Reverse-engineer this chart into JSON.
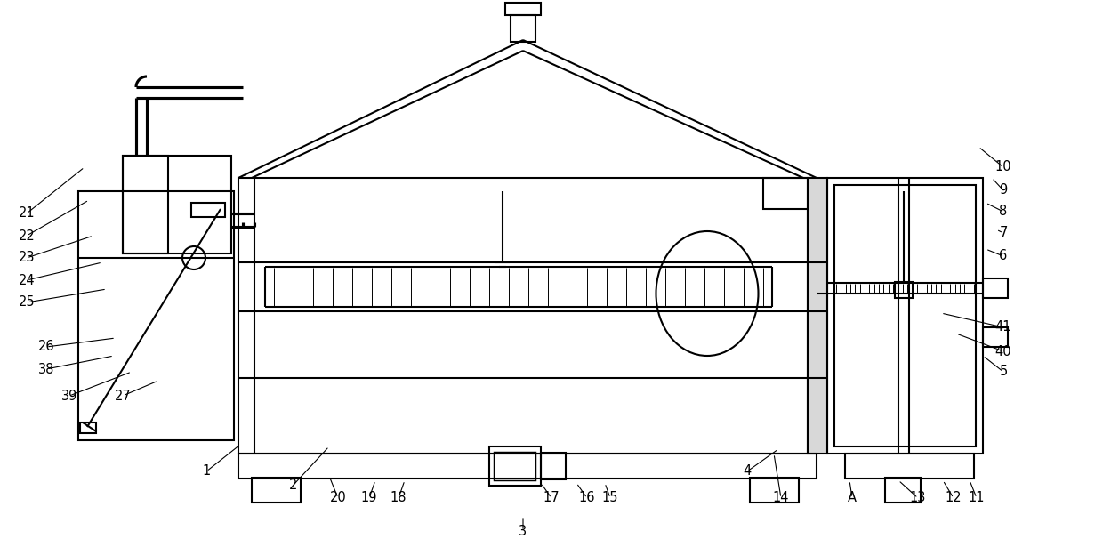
{
  "bg_color": "#ffffff",
  "line_color": "#000000",
  "lw": 1.5,
  "lw_thin": 0.8,
  "fig_width": 12.4,
  "fig_height": 6.15,
  "dpi": 100
}
